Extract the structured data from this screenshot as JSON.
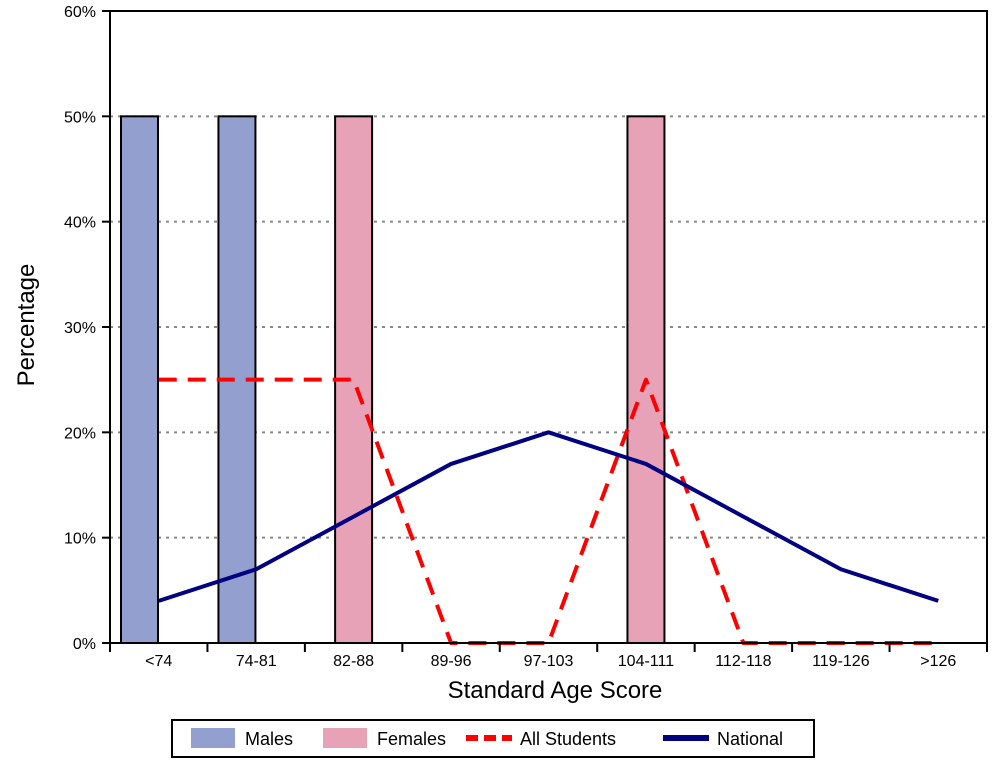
{
  "chart_data": {
    "type": "bar",
    "xlabel": "Standard Age Score",
    "ylabel": "Percentage",
    "ylim": [
      0,
      60
    ],
    "yticks": [
      0,
      10,
      20,
      30,
      40,
      50,
      60
    ],
    "ytick_labels": [
      "0%",
      "10%",
      "20%",
      "30%",
      "40%",
      "50%",
      "60%"
    ],
    "categories": [
      "<74",
      "74-81",
      "82-88",
      "89-96",
      "97-103",
      "104-111",
      "112-118",
      "119-126",
      ">126"
    ],
    "grid": "horizontal dotted",
    "legend_position": "bottom",
    "series": [
      {
        "name": "Males",
        "kind": "bar",
        "color": "#929fcf",
        "values": [
          50,
          50,
          0,
          0,
          0,
          0,
          0,
          0,
          0
        ]
      },
      {
        "name": "Females",
        "kind": "bar",
        "color": "#e8a2b7",
        "values": [
          0,
          0,
          50,
          0,
          0,
          50,
          0,
          0,
          0
        ]
      },
      {
        "name": "All Students",
        "kind": "line",
        "style": "dashed",
        "color": "#ff0000",
        "values": [
          25,
          25,
          25,
          0,
          0,
          25,
          0,
          0,
          0
        ]
      },
      {
        "name": "National",
        "kind": "line",
        "style": "solid",
        "color": "#000080",
        "values": [
          4,
          7,
          12,
          17,
          20,
          17,
          12,
          7,
          4
        ]
      }
    ]
  }
}
